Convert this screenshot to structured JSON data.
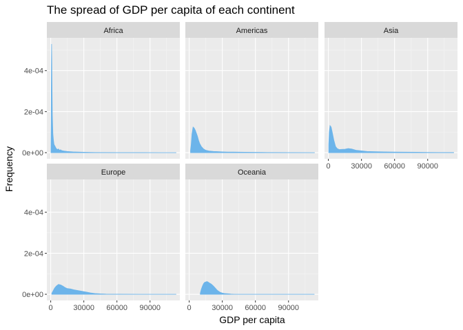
{
  "chart_data": {
    "type": "area",
    "title": "The spread of GDP per capita of each continent",
    "xlabel": "GDP per capita",
    "ylabel": "Frequency",
    "xlim": [
      -3500,
      117000
    ],
    "ylim": [
      -3e-05,
      0.00056
    ],
    "x_ticks": [
      0,
      30000,
      60000,
      90000
    ],
    "x_tick_labels": [
      "0",
      "30000",
      "60000",
      "90000"
    ],
    "y_ticks": [
      0,
      0.0002,
      0.0004
    ],
    "y_tick_labels": [
      "0e+00",
      "2e-04",
      "4e-04"
    ],
    "fill_color": "#6cb4ea",
    "panel_background": "#ebebeb",
    "strip_background": "#d9d9d9",
    "grid": true,
    "facets": [
      {
        "name": "Africa",
        "x": [
          241,
          400,
          600,
          800,
          1000,
          1200,
          1500,
          2000,
          2500,
          3000,
          3500,
          4000,
          5000,
          6000,
          7000,
          8000,
          9000,
          10000,
          12000,
          15000,
          20000,
          25000,
          30000,
          40000,
          60000,
          80000,
          100000,
          113523
        ],
        "y": [
          2e-05,
          0.00015,
          0.00042,
          0.00053,
          0.00045,
          0.00032,
          0.00018,
          9e-05,
          6e-05,
          4e-05,
          3.5e-05,
          3e-05,
          2e-05,
          1.5e-05,
          1.8e-05,
          1.2e-05,
          1.4e-05,
          1e-05,
          8e-06,
          6e-06,
          4e-06,
          3e-06,
          2e-06,
          1e-06,
          5e-07,
          3e-07,
          1e-07,
          1e-07
        ]
      },
      {
        "name": "Americas",
        "x": [
          1200,
          1800,
          2500,
          3500,
          4500,
          5500,
          6500,
          7500,
          8500,
          9500,
          11000,
          13000,
          15000,
          18000,
          22000,
          26000,
          30000,
          35000,
          40000,
          50000,
          70000,
          90000,
          113523
        ],
        "y": [
          1e-05,
          4e-05,
          9e-05,
          0.000125,
          0.00012,
          0.00011,
          9.5e-05,
          8e-05,
          6e-05,
          4.5e-05,
          3e-05,
          1.8e-05,
          1.2e-05,
          8e-06,
          6e-06,
          5e-06,
          4e-06,
          3e-06,
          3e-06,
          2e-06,
          1e-06,
          5e-07,
          2e-07
        ]
      },
      {
        "name": "Asia",
        "x": [
          331,
          800,
          1500,
          2500,
          3500,
          5000,
          6500,
          8000,
          10000,
          12000,
          15000,
          18000,
          21000,
          25000,
          30000,
          35000,
          40000,
          50000,
          60000,
          70000,
          80000,
          90000,
          100000,
          113523
        ],
        "y": [
          4e-05,
          0.0001,
          0.000132,
          0.000125,
          0.0001,
          6e-05,
          3e-05,
          2e-05,
          1.5e-05,
          1.6e-05,
          1.7e-05,
          2e-05,
          1.8e-05,
          1.2e-05,
          9e-06,
          6e-06,
          5e-06,
          4e-06,
          3e-06,
          2.5e-06,
          2e-06,
          1.5e-06,
          1e-06,
          1e-06
        ]
      },
      {
        "name": "Europe",
        "x": [
          974,
          2000,
          3500,
          5000,
          7000,
          9000,
          11000,
          13000,
          15000,
          18000,
          21000,
          24000,
          27000,
          30000,
          33000,
          36000,
          40000,
          45000,
          50000,
          60000,
          80000,
          100000,
          113523
        ],
        "y": [
          5e-06,
          1.5e-05,
          3e-05,
          4e-05,
          4.8e-05,
          4.6e-05,
          4e-05,
          3.3e-05,
          2.8e-05,
          2.6e-05,
          2.2e-05,
          1.9e-05,
          1.6e-05,
          1.3e-05,
          1e-05,
          7e-06,
          4e-06,
          2e-06,
          1e-06,
          5e-07,
          2e-07,
          1e-07,
          1e-07
        ]
      },
      {
        "name": "Oceania",
        "x": [
          10040,
          11000,
          12000,
          13000,
          14000,
          15000,
          16000,
          17000,
          18000,
          19000,
          20000,
          21000,
          22000,
          23000,
          24000,
          25000,
          26000,
          28000,
          30000,
          32000,
          34000,
          36000,
          38000,
          40000,
          45000,
          60000,
          113523
        ],
        "y": [
          5e-06,
          2.5e-05,
          4e-05,
          5.2e-05,
          5.8e-05,
          6e-05,
          6.2e-05,
          6e-05,
          5.6e-05,
          5.3e-05,
          5e-05,
          4.5e-05,
          4e-05,
          3.4e-05,
          2.8e-05,
          2.2e-05,
          1.7e-05,
          1e-05,
          6e-06,
          4e-06,
          3e-06,
          2e-06,
          1e-06,
          5e-07,
          1e-07,
          0,
          0
        ]
      }
    ]
  }
}
